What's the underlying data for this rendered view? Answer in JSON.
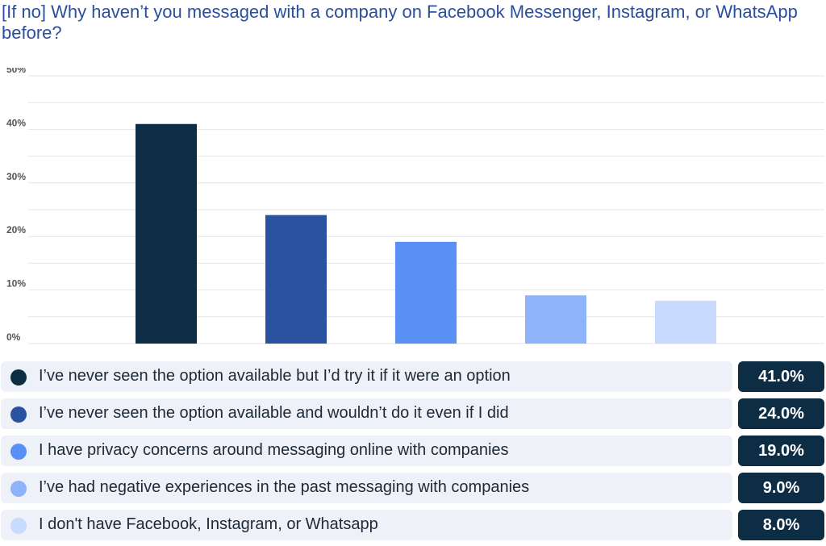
{
  "title": "[If no] Why haven’t you messaged with a company on Facebook Messenger, Instagram, or WhatsApp before?",
  "chart_data": {
    "type": "bar",
    "title": "[If no] Why haven’t you messaged with a company on Facebook Messenger, Instagram, or WhatsApp before?",
    "categories": [
      "I’ve never seen the option available but I’d try it if it were an option",
      "I’ve never seen the option available and wouldn’t do it even if I did",
      "I have privacy concerns around messaging online with companies",
      "I’ve had negative experiences in the past messaging with companies",
      "I don't have Facebook, Instagram, or Whatsapp"
    ],
    "values": [
      41.0,
      24.0,
      19.0,
      9.0,
      8.0
    ],
    "value_labels": [
      "41.0%",
      "24.0%",
      "19.0%",
      "9.0%",
      "8.0%"
    ],
    "colors": [
      "#0d2d45",
      "#2a52a0",
      "#5a8ff5",
      "#8fb3fb",
      "#c8dafd"
    ],
    "yticks": [
      "0%",
      "10%",
      "20%",
      "30%",
      "40%",
      "50%"
    ],
    "ylim": [
      0,
      50
    ],
    "xlabel": "",
    "ylabel": "",
    "grid": true,
    "legend": "bottom"
  }
}
